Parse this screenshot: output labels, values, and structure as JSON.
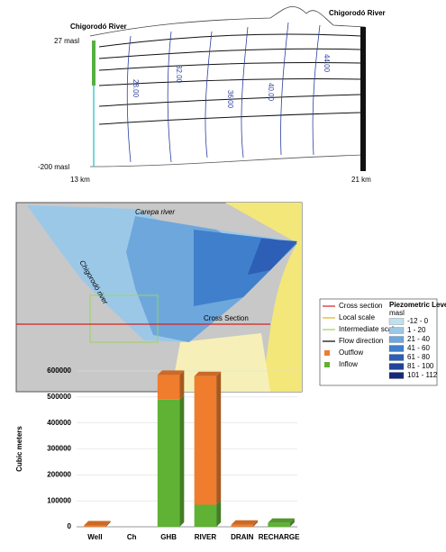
{
  "cross_section": {
    "left_label": "Chigorodó River",
    "right_label": "Chigorodó River",
    "top_elevation": "27 masl",
    "bottom_elevation": "-200 masl",
    "left_distance": "13 km",
    "right_distance": "21 km",
    "contours": [
      "28.00",
      "32.00",
      "36.00",
      "40.00",
      "44.00"
    ]
  },
  "map": {
    "labels": {
      "carepa": "Carepa river",
      "chigorodo": "Chigorodó river",
      "section": "Cross Section"
    },
    "legend": {
      "items": [
        {
          "label": "Cross section",
          "color": "#d62020",
          "kind": "line"
        },
        {
          "label": "Local scale",
          "color": "#e0b020",
          "kind": "line"
        },
        {
          "label": "Intermediate scale",
          "color": "#9bd35a",
          "kind": "line"
        },
        {
          "label": "Flow direction",
          "color": "#000000",
          "kind": "arrow"
        },
        {
          "label": "Outflow",
          "color": "#ef7d2d",
          "kind": "box"
        },
        {
          "label": "Inflow",
          "color": "#5fb234",
          "kind": "box"
        }
      ],
      "piezometric_title": "Piezometric Level",
      "piezometric_unit": "masl",
      "piezometric": [
        {
          "label": "-12 - 0",
          "color": "#bfe0ef"
        },
        {
          "label": "1 - 20",
          "color": "#9cc8e8"
        },
        {
          "label": "21 - 40",
          "color": "#6ea7dc"
        },
        {
          "label": "41 - 60",
          "color": "#3f7fcb"
        },
        {
          "label": "61 - 80",
          "color": "#2c5fb5"
        },
        {
          "label": "81 - 100",
          "color": "#21449a"
        },
        {
          "label": "101 - 112",
          "color": "#16297a"
        }
      ]
    }
  },
  "chart_data": {
    "type": "bar",
    "ylabel": "Cubic meters",
    "categories": [
      "Well",
      "Ch",
      "GHB",
      "RIVER",
      "DRAIN",
      "RECHARGE"
    ],
    "series": [
      {
        "name": "Inflow",
        "color": "#5fb234",
        "values": [
          0,
          0,
          490000,
          85000,
          0,
          15000
        ]
      },
      {
        "name": "Outflow",
        "color": "#ef7d2d",
        "values": [
          5000,
          0,
          95000,
          495000,
          8000,
          0
        ]
      }
    ],
    "ylim": [
      0,
      600000
    ],
    "yticks": [
      0,
      100000,
      200000,
      300000,
      400000,
      500000,
      600000
    ],
    "grid": true
  }
}
